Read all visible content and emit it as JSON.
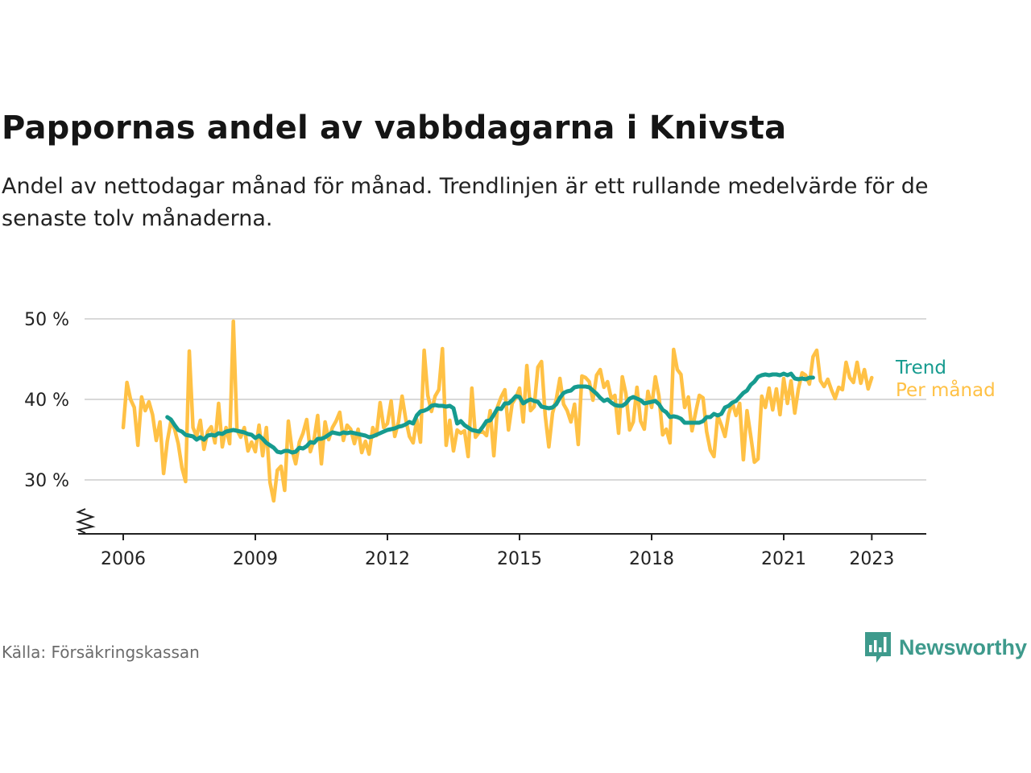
{
  "header": {
    "title": "Pappornas andel av vabbdagarna i Knivsta",
    "subtitle": "Andel av nettodagar månad för månad. Trendlinjen är ett rullande medelvärde för de senaste tolv månaderna."
  },
  "footer": {
    "source": "Källa: Försäkringskassan",
    "brand": "Newsworthy"
  },
  "colors": {
    "monthly": "#ffc145",
    "trend": "#169b8f",
    "grid": "#d9d9d9",
    "axis": "#222222",
    "brand": "#3e9a8c"
  },
  "chart_data": {
    "type": "line",
    "title": "Pappornas andel av vabbdagarna i Knivsta",
    "xlabel": "",
    "ylabel": "",
    "x_start": 2006.0,
    "x_step_months": 1,
    "xlim": [
      2004.9,
      2024.0
    ],
    "ylim": [
      23.5,
      51.5
    ],
    "x_ticks": [
      2006,
      2009,
      2012,
      2015,
      2018,
      2021,
      2023
    ],
    "x_tick_labels": [
      "2006",
      "2009",
      "2012",
      "2015",
      "2018",
      "2021",
      "2023"
    ],
    "y_ticks": [
      30,
      40,
      50
    ],
    "y_tick_labels": [
      "30 %",
      "40 %",
      "50 %"
    ],
    "grid": true,
    "axis_break": true,
    "series": [
      {
        "name": "Per månad",
        "values": [
          36.5,
          42.1,
          40.0,
          39.0,
          34.3,
          40.3,
          38.6,
          39.7,
          38.1,
          34.9,
          37.2,
          30.8,
          34.8,
          37.3,
          36.3,
          34.5,
          31.5,
          29.8,
          46.0,
          36.5,
          35.4,
          37.4,
          33.8,
          36.0,
          36.6,
          34.6,
          39.5,
          34.1,
          36.5,
          34.5,
          49.7,
          36.2,
          35.3,
          36.5,
          33.6,
          34.7,
          33.5,
          36.8,
          33.0,
          36.5,
          29.7,
          27.4,
          31.2,
          31.7,
          28.7,
          37.3,
          33.7,
          32.0,
          34.7,
          35.8,
          37.5,
          33.5,
          35.0,
          38.0,
          32.0,
          37.2,
          35.0,
          36.5,
          37.3,
          38.4,
          34.9,
          36.8,
          36.3,
          34.5,
          36.3,
          33.4,
          34.8,
          33.2,
          36.5,
          35.5,
          39.6,
          36.5,
          37.0,
          39.8,
          35.4,
          37.2,
          40.4,
          37.5,
          35.4,
          34.6,
          37.5,
          34.7,
          46.1,
          40.5,
          38.5,
          40.4,
          41.2,
          46.3,
          34.3,
          37.4,
          33.6,
          36.2,
          35.8,
          36.1,
          32.9,
          41.4,
          35.3,
          35.9,
          36.0,
          35.5,
          38.6,
          33.0,
          39.1,
          40.3,
          41.2,
          36.2,
          39.5,
          40.2,
          41.4,
          37.2,
          44.2,
          38.6,
          39.1,
          44.0,
          44.7,
          38.0,
          34.1,
          38.3,
          40.0,
          42.6,
          39.4,
          38.6,
          37.2,
          39.4,
          34.4,
          42.9,
          42.7,
          42.2,
          39.9,
          43.0,
          43.7,
          41.5,
          42.2,
          40.1,
          40.5,
          35.8,
          42.8,
          40.7,
          36.2,
          37.2,
          41.5,
          37.3,
          36.3,
          41.0,
          39.0,
          42.8,
          40.4,
          35.6,
          36.3,
          34.6,
          46.2,
          43.7,
          43.1,
          39.0,
          40.3,
          36.1,
          38.4,
          40.5,
          40.2,
          36.0,
          33.7,
          32.9,
          38.0,
          36.8,
          35.4,
          38.2,
          39.6,
          38.0,
          39.5,
          32.5,
          38.6,
          35.5,
          32.2,
          32.6,
          40.4,
          39.0,
          41.4,
          38.7,
          41.3,
          38.1,
          42.6,
          39.5,
          42.3,
          38.3,
          41.3,
          43.3,
          43.0,
          41.9,
          45.3,
          46.1,
          42.3,
          41.6,
          42.5,
          41.2,
          40.1,
          41.5,
          41.2,
          44.6,
          42.7,
          42.1,
          44.6,
          42.0,
          43.7,
          41.3,
          42.7
        ]
      },
      {
        "name": "Trend",
        "values": [
          37.8,
          37.5,
          36.8,
          36.2,
          36.0,
          35.6,
          35.5,
          35.4,
          35.0,
          35.3,
          35.0,
          35.5,
          35.6,
          35.5,
          35.8,
          35.7,
          36.0,
          36.1,
          36.2,
          36.1,
          36.0,
          35.9,
          35.7,
          35.6,
          35.2,
          35.5,
          35.1,
          34.6,
          34.3,
          34.0,
          33.5,
          33.4,
          33.6,
          33.6,
          33.4,
          33.5,
          34.0,
          33.9,
          34.2,
          34.7,
          34.6,
          35.1,
          35.1,
          35.3,
          35.6,
          35.9,
          35.8,
          35.7,
          35.9,
          35.8,
          35.9,
          35.8,
          35.7,
          35.6,
          35.5,
          35.3,
          35.4,
          35.6,
          35.8,
          36.0,
          36.2,
          36.3,
          36.4,
          36.6,
          36.7,
          36.9,
          37.2,
          37.0,
          38.0,
          38.5,
          38.6,
          38.8,
          39.2,
          39.3,
          39.2,
          39.2,
          39.1,
          39.2,
          38.9,
          37.0,
          37.3,
          36.8,
          36.5,
          36.2,
          36.1,
          36.0,
          36.6,
          37.3,
          37.4,
          38.1,
          38.9,
          38.8,
          39.5,
          39.5,
          39.9,
          40.4,
          40.3,
          39.5,
          39.8,
          40.0,
          39.8,
          39.7,
          39.1,
          39.0,
          38.9,
          39.0,
          39.4,
          40.2,
          40.8,
          41.0,
          41.1,
          41.5,
          41.6,
          41.6,
          41.6,
          41.5,
          41.1,
          40.7,
          40.2,
          39.8,
          40.0,
          39.6,
          39.3,
          39.2,
          39.2,
          39.5,
          40.1,
          40.3,
          40.1,
          39.9,
          39.5,
          39.6,
          39.7,
          39.8,
          39.4,
          38.7,
          38.4,
          37.8,
          37.9,
          37.8,
          37.6,
          37.1,
          37.1,
          37.1,
          37.1,
          37.1,
          37.3,
          37.8,
          37.8,
          38.2,
          38.0,
          38.2,
          39.0,
          39.2,
          39.6,
          39.8,
          40.3,
          40.8,
          41.1,
          41.8,
          42.2,
          42.8,
          43.0,
          43.1,
          43.0,
          43.1,
          43.1,
          43.0,
          43.2,
          43.0,
          43.2,
          42.6,
          42.5,
          42.6,
          42.5,
          42.7,
          42.7
        ]
      }
    ],
    "trend_start": 2007.0,
    "legend": [
      "Trend",
      "Per månad"
    ],
    "legend_placement": "right end of lines"
  }
}
